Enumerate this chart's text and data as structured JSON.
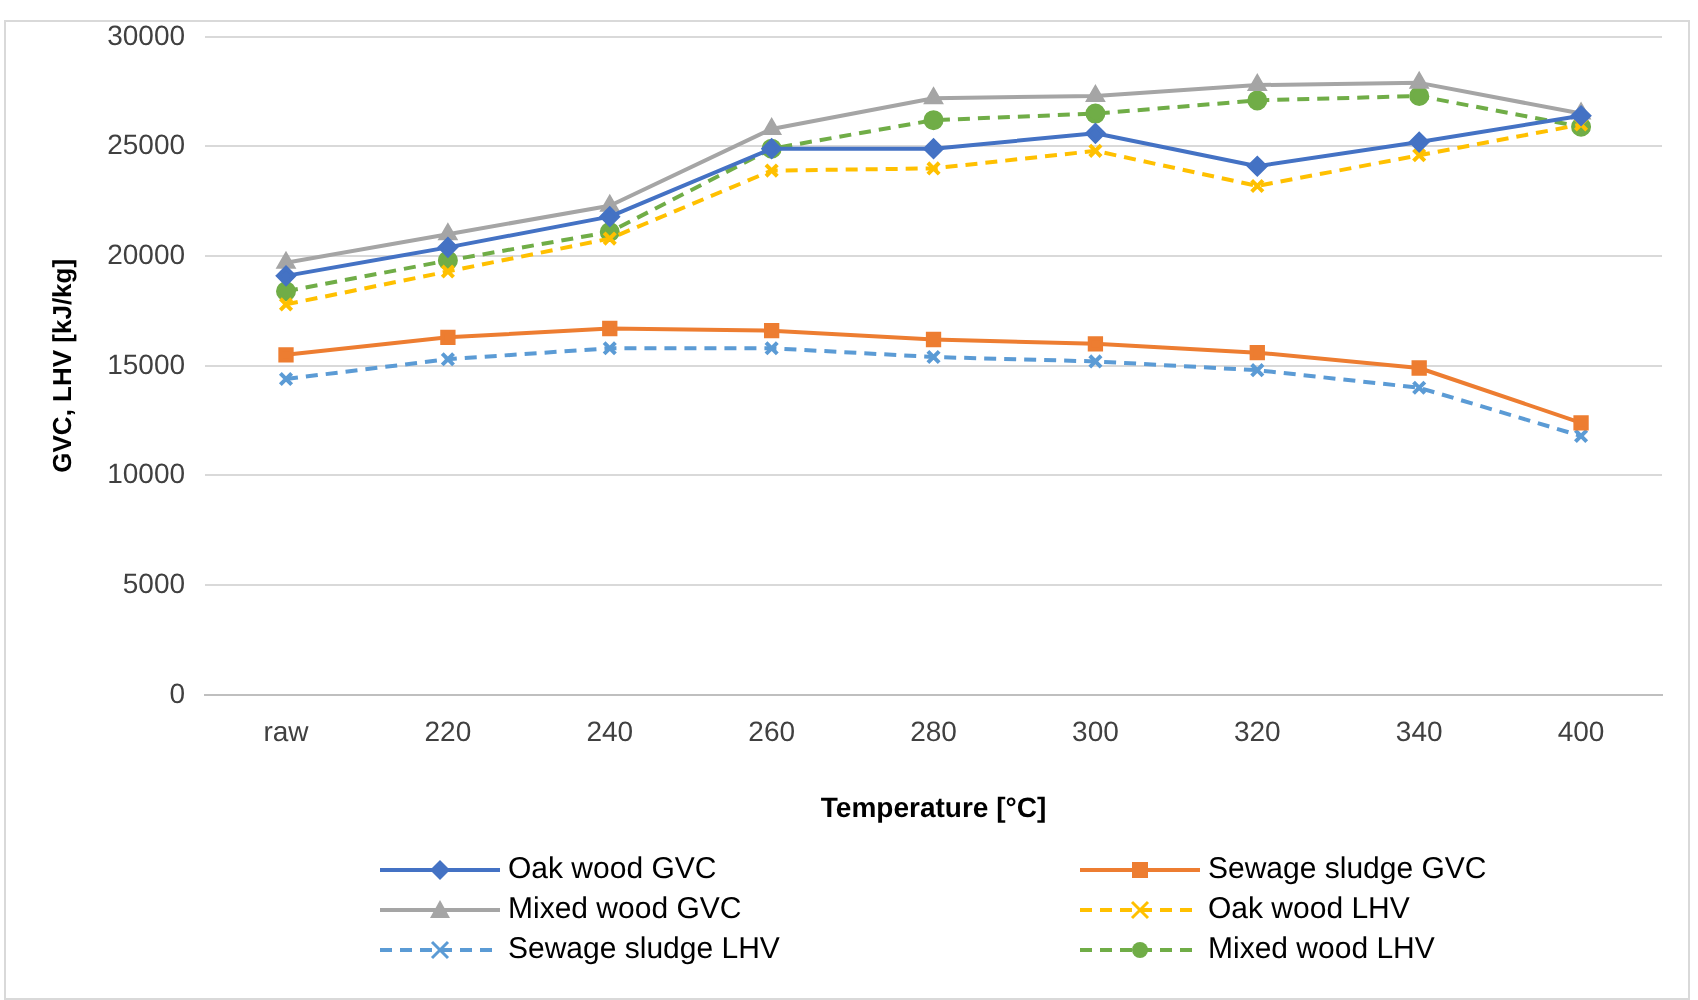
{
  "chart_data": {
    "type": "line",
    "xlabel": "Temperature [°C]",
    "ylabel": "GVC, LHV [kJ/kg]",
    "categories": [
      "raw",
      "220",
      "240",
      "260",
      "280",
      "300",
      "320",
      "340",
      "400"
    ],
    "ylim": [
      0,
      30000
    ],
    "yticks": [
      0,
      5000,
      10000,
      15000,
      20000,
      25000,
      30000
    ],
    "grid": "y",
    "legend": "bottom",
    "series": [
      {
        "name": "Oak wood GVC",
        "color": "#4472c4",
        "marker": "diamond",
        "line_style": "solid",
        "values": [
          19100,
          20400,
          21800,
          24900,
          24900,
          25600,
          24100,
          25200,
          26400
        ]
      },
      {
        "name": "Sewage sludge GVC",
        "color": "#ed7d31",
        "marker": "square",
        "line_style": "solid",
        "values": [
          15500,
          16300,
          16700,
          16600,
          16200,
          16000,
          15600,
          14900,
          12400
        ]
      },
      {
        "name": "Mixed wood GVC",
        "color": "#a5a5a5",
        "marker": "triangle",
        "line_style": "solid",
        "values": [
          19700,
          21000,
          22300,
          25800,
          27200,
          27300,
          27800,
          27900,
          26500
        ]
      },
      {
        "name": "Oak wood LHV",
        "color": "#ffc000",
        "marker": "cross",
        "line_style": "dashed",
        "values": [
          17800,
          19300,
          20800,
          23900,
          24000,
          24800,
          23200,
          24600,
          26000
        ]
      },
      {
        "name": "Sewage sludge LHV",
        "color": "#5b9bd5",
        "marker": "cross",
        "line_style": "dashed",
        "values": [
          14400,
          15300,
          15800,
          15800,
          15400,
          15200,
          14800,
          14000,
          11800
        ]
      },
      {
        "name": "Mixed wood LHV",
        "color": "#70ad47",
        "marker": "circle",
        "line_style": "dashed",
        "values": [
          18400,
          19800,
          21100,
          24900,
          26200,
          26500,
          27100,
          27300,
          25900
        ]
      }
    ]
  }
}
